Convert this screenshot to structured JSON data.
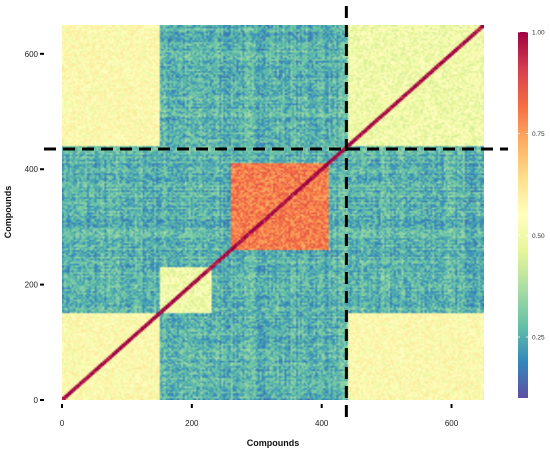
{
  "chart_data": {
    "type": "heatmap",
    "title": "",
    "xlabel": "Compounds",
    "ylabel": "Compounds",
    "xlim": [
      0,
      650
    ],
    "ylim": [
      0,
      650
    ],
    "x_ticks": [
      0,
      200,
      400,
      600
    ],
    "y_ticks": [
      0,
      200,
      400,
      600
    ],
    "colorbar": {
      "ticks": [
        0.25,
        0.5,
        0.75,
        1.0
      ],
      "tick_labels": [
        "0.25",
        "0.50",
        "0.75",
        "1.00"
      ],
      "range": [
        0.1,
        1.0
      ],
      "colors": [
        "#5e4fa2",
        "#3288bd",
        "#66c2a5",
        "#abdda4",
        "#e6f598",
        "#ffffbf",
        "#fee08b",
        "#fdae61",
        "#f46d43",
        "#d53e4f",
        "#9e0142"
      ]
    },
    "grid": false,
    "legend": "right",
    "clusters": [
      {
        "x": [
          0,
          150
        ],
        "y": [
          0,
          150
        ],
        "similarity": 0.55
      },
      {
        "x": [
          150,
          230
        ],
        "y": [
          150,
          230
        ],
        "similarity": 0.5
      },
      {
        "x": [
          260,
          410
        ],
        "y": [
          260,
          410
        ],
        "similarity": 0.8
      },
      {
        "x": [
          440,
          650
        ],
        "y": [
          440,
          650
        ],
        "similarity": 0.5
      },
      {
        "x": [
          440,
          650
        ],
        "y": [
          0,
          150
        ],
        "similarity": 0.55
      },
      {
        "x": [
          0,
          150
        ],
        "y": [
          440,
          650
        ],
        "similarity": 0.55
      }
    ],
    "reference_lines": [
      {
        "orientation": "vertical",
        "x": 438,
        "style": "dashed",
        "color": "#000000"
      },
      {
        "orientation": "horizontal",
        "y": 435,
        "style": "dashed",
        "color": "#000000"
      }
    ]
  }
}
